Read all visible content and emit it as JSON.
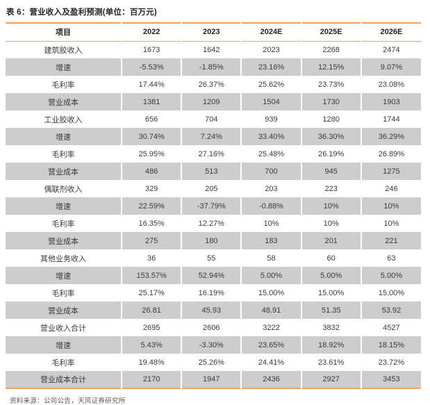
{
  "title": "表 6：营业收入及盈利预测(单位：百万元)",
  "source_note": "资料来源：公司公告，天风证券研究所",
  "colors": {
    "accent_orange": "#F2A15C",
    "row_shade": "#CDCDCD"
  },
  "table": {
    "header": [
      "项目",
      "2022",
      "2023",
      "2024E",
      "2025E",
      "2026E"
    ],
    "rows": [
      {
        "label": "建筑胶收入",
        "values": [
          "1673",
          "1642",
          "2023",
          "2268",
          "2474"
        ],
        "bold_label": true,
        "bold_values": true,
        "shaded": false
      },
      {
        "label": "增速",
        "values": [
          "-5.53%",
          "-1.85%",
          "23.16%",
          "12.15%",
          "9.07%"
        ],
        "bold_label": false,
        "bold_values": false,
        "shaded": true
      },
      {
        "label": "毛利率",
        "values": [
          "17.44%",
          "26.37%",
          "25.62%",
          "23.73%",
          "23.08%"
        ],
        "bold_label": false,
        "bold_values": false,
        "shaded": false
      },
      {
        "label": "营业成本",
        "values": [
          "1381",
          "1209",
          "1504",
          "1730",
          "1903"
        ],
        "bold_label": false,
        "bold_values": false,
        "shaded": true
      },
      {
        "label": "工业胶收入",
        "values": [
          "656",
          "704",
          "939",
          "1280",
          "1744"
        ],
        "bold_label": true,
        "bold_values": true,
        "shaded": false
      },
      {
        "label": "增速",
        "values": [
          "30.74%",
          "7.24%",
          "33.40%",
          "36.30%",
          "36.29%"
        ],
        "bold_label": false,
        "bold_values": false,
        "shaded": true
      },
      {
        "label": "毛利率",
        "values": [
          "25.95%",
          "27.16%",
          "25.48%",
          "26.19%",
          "26.89%"
        ],
        "bold_label": false,
        "bold_values": false,
        "shaded": false
      },
      {
        "label": "营业成本",
        "values": [
          "486",
          "513",
          "700",
          "945",
          "1275"
        ],
        "bold_label": false,
        "bold_values": false,
        "shaded": true
      },
      {
        "label": "偶联剂收入",
        "values": [
          "329",
          "205",
          "203",
          "223",
          "246"
        ],
        "bold_label": true,
        "bold_values": true,
        "shaded": false
      },
      {
        "label": "增速",
        "values": [
          "22.59%",
          "-37.79%",
          "-0.88%",
          "10%",
          "10%"
        ],
        "bold_label": false,
        "bold_values": false,
        "shaded": true
      },
      {
        "label": "毛利率",
        "values": [
          "16.35%",
          "12.27%",
          "10%",
          "10%",
          "10%"
        ],
        "bold_label": false,
        "bold_values": false,
        "shaded": false
      },
      {
        "label": "营业成本",
        "values": [
          "275",
          "180",
          "183",
          "201",
          "221"
        ],
        "bold_label": false,
        "bold_values": false,
        "shaded": true
      },
      {
        "label": "其他业务收入",
        "values": [
          "36",
          "55",
          "58",
          "60",
          "63"
        ],
        "bold_label": true,
        "bold_values": false,
        "shaded": false
      },
      {
        "label": "增速",
        "values": [
          "153.57%",
          "52.94%",
          "5.00%",
          "5.00%",
          "5.00%"
        ],
        "bold_label": false,
        "bold_values": false,
        "shaded": true
      },
      {
        "label": "毛利率",
        "values": [
          "25.17%",
          "16.19%",
          "15.00%",
          "15.00%",
          "15.00%"
        ],
        "bold_label": false,
        "bold_values": false,
        "shaded": false
      },
      {
        "label": "营业成本",
        "values": [
          "26.81",
          "45.93",
          "48.91",
          "51.35",
          "53.92"
        ],
        "bold_label": false,
        "bold_values": false,
        "shaded": true
      },
      {
        "label": "营业收入合计",
        "values": [
          "2695",
          "2606",
          "3222",
          "3832",
          "4527"
        ],
        "bold_label": true,
        "bold_values": true,
        "shaded": false
      },
      {
        "label": "增速",
        "values": [
          "5.43%",
          "-3.30%",
          "23.65%",
          "18.92%",
          "18.15%"
        ],
        "bold_label": false,
        "bold_values": false,
        "shaded": true
      },
      {
        "label": "毛利率",
        "values": [
          "19.48%",
          "25.26%",
          "24.41%",
          "23.61%",
          "23.72%"
        ],
        "bold_label": false,
        "bold_values": false,
        "shaded": false
      },
      {
        "label": "营业成本合计",
        "values": [
          "2170",
          "1947",
          "2436",
          "2927",
          "3453"
        ],
        "bold_label": true,
        "bold_values": true,
        "shaded": true
      }
    ]
  }
}
